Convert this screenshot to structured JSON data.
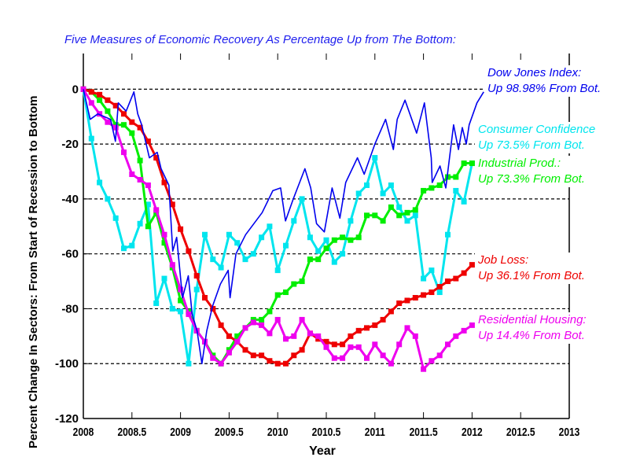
{
  "chart_data": {
    "type": "line",
    "title": "Five Measures of Economic Recovery As Percentage Up from The Bottom:",
    "xlabel": "Year",
    "ylabel": "Percent Change In Sectors: From Start of Recession to Bottom",
    "xlim": [
      2008,
      2013
    ],
    "ylim": [
      -120,
      13
    ],
    "xticks": [
      "2008",
      "2008.5",
      "2009",
      "2009.5",
      "2010",
      "2010.5",
      "2011",
      "2011.5",
      "2012",
      "2012.5",
      "2013"
    ],
    "yticks": [
      "0",
      "-20",
      "-40",
      "-60",
      "-80",
      "-100",
      "-120"
    ],
    "grid": "dashed horizontal at 0 to -100",
    "monthly_x_start": 2008.0,
    "series": [
      {
        "name": "Dow Jones Index:",
        "note": "Up 98.98% From Bot.",
        "color": "#0000ee",
        "markers": false,
        "x": [
          2008.0,
          2008.07,
          2008.15,
          2008.28,
          2008.33,
          2008.36,
          2008.44,
          2008.52,
          2008.56,
          2008.6,
          2008.68,
          2008.76,
          2008.8,
          2008.88,
          2008.92,
          2008.96,
          2009.02,
          2009.08,
          2009.12,
          2009.17,
          2009.22,
          2009.27,
          2009.33,
          2009.41,
          2009.49,
          2009.51,
          2009.57,
          2009.67,
          2009.84,
          2009.95,
          2010.03,
          2010.08,
          2010.16,
          2010.28,
          2010.34,
          2010.4,
          2010.48,
          2010.56,
          2010.64,
          2010.7,
          2010.82,
          2010.89,
          2011.0,
          2011.11,
          2011.19,
          2011.23,
          2011.31,
          2011.43,
          2011.51,
          2011.58,
          2011.59,
          2011.67,
          2011.73,
          2011.81,
          2011.86,
          2011.9,
          2011.94,
          2011.97,
          2012.05,
          2012.12
        ],
        "y": [
          0,
          -11,
          -9,
          -11,
          -19,
          -5,
          -8,
          -1,
          -9,
          -13,
          -25,
          -23,
          -29,
          -35,
          -59,
          -54,
          -76,
          -68,
          -82,
          -88,
          -100,
          -88,
          -79,
          -71,
          -66,
          -76,
          -60,
          -53,
          -45,
          -37,
          -36,
          -48,
          -40,
          -29,
          -36,
          -49,
          -52,
          -36,
          -47,
          -34,
          -25,
          -31,
          -20,
          -11,
          -22,
          -11,
          -4,
          -16,
          -5,
          -25,
          -34,
          -28,
          -36,
          -13,
          -22,
          -14,
          -20,
          -13,
          -5,
          -1
        ]
      },
      {
        "name": "Consumer Confidence",
        "note": "Up 73.5% From Bot.",
        "color": "#00e5ee",
        "markers": true,
        "y": [
          0,
          -18,
          -34,
          -40,
          -47,
          -58,
          -57,
          -49,
          -42,
          -78,
          -69,
          -80,
          -81,
          -100,
          -73,
          -53,
          -62,
          -65,
          -53,
          -56,
          -62,
          -60,
          -54,
          -50,
          -66,
          -57,
          -48,
          -40,
          -54,
          -59,
          -55,
          -63,
          -60,
          -48,
          -38,
          -35,
          -25,
          -38,
          -35,
          -43,
          -48,
          -46,
          -69,
          -66,
          -74,
          -53,
          -37,
          -41,
          -27
        ]
      },
      {
        "name": "Industrial Prod.:",
        "note": "Up 73.3% From Bot.",
        "color": "#00ee00",
        "markers": true,
        "y": [
          0,
          -1,
          -4,
          -8,
          -13,
          -13,
          -16,
          -26,
          -50,
          -45,
          -56,
          -65,
          -77,
          -81,
          -88,
          -92,
          -97,
          -100,
          -95,
          -90,
          -87,
          -84,
          -84,
          -81,
          -75,
          -74,
          -71,
          -70,
          -62,
          -62,
          -58,
          -55,
          -54,
          -55,
          -54,
          -46,
          -46,
          -48,
          -43,
          -46,
          -45,
          -44,
          -37,
          -36,
          -35,
          -32,
          -32,
          -27,
          -27
        ]
      },
      {
        "name": "Job Loss:",
        "note": "Up 36.1% From Bot.",
        "color": "#ee0000",
        "markers": true,
        "y": [
          0,
          -1,
          -2,
          -4,
          -6,
          -9,
          -12,
          -14,
          -19,
          -25,
          -34,
          -42,
          -51,
          -59,
          -68,
          -76,
          -80,
          -86,
          -90,
          -92,
          -95,
          -97,
          -97,
          -99,
          -100,
          -100,
          -97,
          -95,
          -89,
          -91,
          -92,
          -93,
          -93,
          -90,
          -88,
          -87,
          -86,
          -84,
          -81,
          -78,
          -77,
          -76,
          -75,
          -74,
          -72,
          -70,
          -69,
          -67,
          -64
        ]
      },
      {
        "name": "Residential Housing:",
        "note": "Up 14.4% From Bot.",
        "color": "#ee00ee",
        "markers": true,
        "y": [
          0,
          -5,
          -9,
          -12,
          -14,
          -23,
          -31,
          -33,
          -35,
          -44,
          -53,
          -64,
          -73,
          -82,
          -88,
          -92,
          -98,
          -100,
          -96,
          -92,
          -87,
          -85,
          -86,
          -89,
          -84,
          -91,
          -90,
          -84,
          -89,
          -90,
          -94,
          -98,
          -98,
          -94,
          -94,
          -98,
          -93,
          -97,
          -100,
          -93,
          -87,
          -90,
          -102,
          -99,
          -97,
          -93,
          -90,
          -88,
          -86
        ]
      }
    ]
  }
}
